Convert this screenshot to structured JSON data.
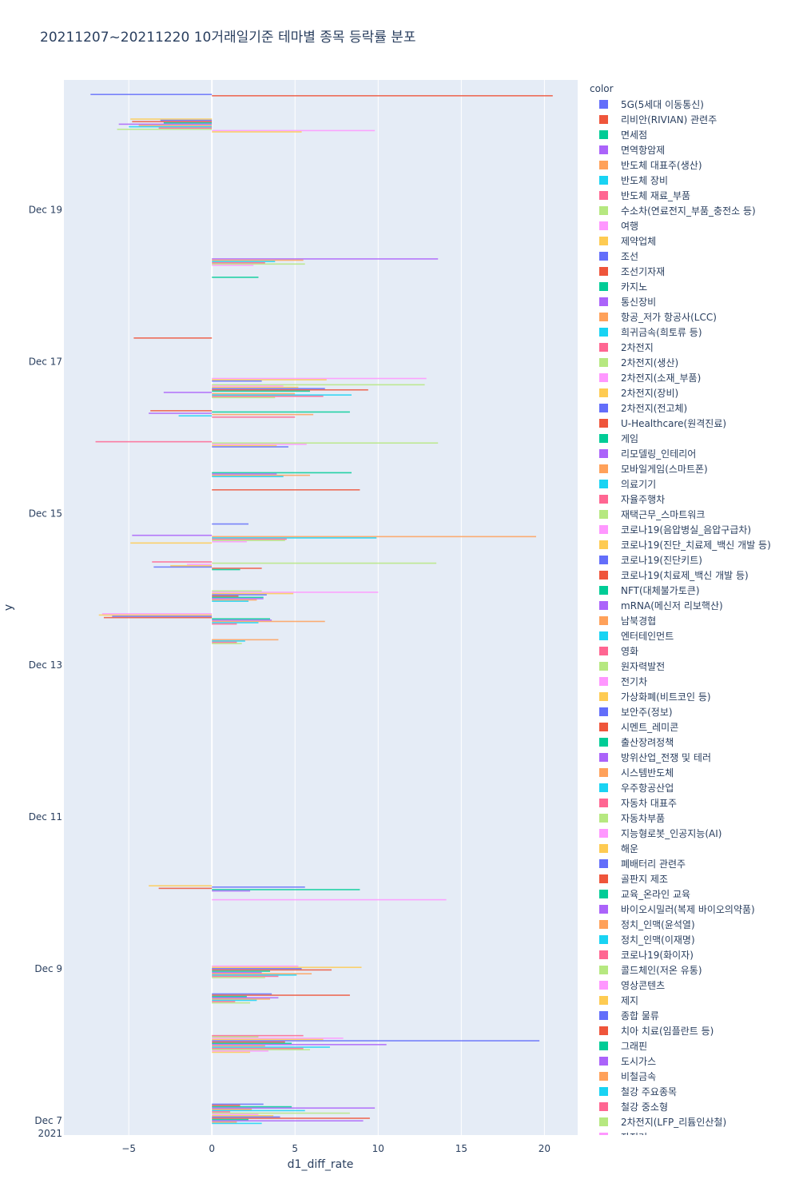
{
  "chart_data": {
    "type": "bar",
    "orientation": "horizontal",
    "title": "20211207~20211220 10거래일기준 테마별 종목 등락률 분포",
    "xlabel": "d1_diff_rate",
    "ylabel": "y",
    "xlim": [
      -8.9,
      22.0
    ],
    "x_ticks": [
      -5,
      0,
      5,
      10,
      15,
      20
    ],
    "x_tick_labels": [
      "−5",
      "0",
      "5",
      "10",
      "15",
      "20"
    ],
    "ylim_days": [
      -0.2,
      13.7
    ],
    "y_ticks": [
      {
        "day": 0,
        "label": "Dec 7",
        "label2": "2021"
      },
      {
        "day": 2,
        "label": "Dec 9"
      },
      {
        "day": 4,
        "label": "Dec 11"
      },
      {
        "day": 6,
        "label": "Dec 13"
      },
      {
        "day": 8,
        "label": "Dec 15"
      },
      {
        "day": 10,
        "label": "Dec 17"
      },
      {
        "day": 12,
        "label": "Dec 19"
      }
    ],
    "legend_title": "color",
    "legend": [
      "5G(5세대 이동통신)",
      "리비안(RIVIAN) 관련주",
      "면세점",
      "면역항암제",
      "반도체 대표주(생산)",
      "반도체 장비",
      "반도체 재료_부품",
      "수소차(연료전지_부품_충전소 등)",
      "여행",
      "제약업체",
      "조선",
      "조선기자재",
      "카지노",
      "통신장비",
      "항공_저가 항공사(LCC)",
      "희귀금속(희토류 등)",
      "2차전지",
      "2차전지(생산)",
      "2차전지(소재_부품)",
      "2차전지(장비)",
      "2차전지(전고체)",
      "U-Healthcare(원격진료)",
      "게임",
      "리모델링_인테리어",
      "모바일게임(스마트폰)",
      "의료기기",
      "자율주행차",
      "재택근무_스마트워크",
      "코로나19(음압병실_음압구급차)",
      "코로나19(진단_치료제_백신 개발 등)",
      "코로나19(진단키트)",
      "코로나19(치료제_백신 개발 등)",
      "NFT(대체불가토큰)",
      "mRNA(메신저 리보핵산)",
      "남북경협",
      "엔터테인먼트",
      "영화",
      "원자력발전",
      "전기차",
      "가상화폐(비트코인 등)",
      "보안주(정보)",
      "시멘트_레미콘",
      "출산장려정책",
      "방위산업_전쟁 및 테러",
      "시스템반도체",
      "우주항공산업",
      "자동차 대표주",
      "자동차부품",
      "지능형로봇_인공지능(AI)",
      "해운",
      "폐배터리 관련주",
      "골판지 제조",
      "교육_온라인 교육",
      "바이오시밀러(복제 바이오의약품)",
      "정치_인맥(윤석열)",
      "정치_인맥(이재명)",
      "코로나19(화이자)",
      "콜드체인(저온 유통)",
      "영상콘텐츠",
      "제지",
      "종합 물류",
      "치아 치료(임플란트 등)",
      "그래핀",
      "도시가스",
      "비철금속",
      "철강 주요종목",
      "철강 중소형",
      "2차전지(LFP_리튬인산철)",
      "자전거"
    ],
    "palette": [
      "#636efa",
      "#EF553B",
      "#00cc96",
      "#ab63fa",
      "#FFA15A",
      "#19d3f3",
      "#FF6692",
      "#B6E880",
      "#FF97FF",
      "#FECB52"
    ],
    "bars": [
      {
        "day": 0.08,
        "values": [
          3.1,
          1.7,
          4.8,
          9.8,
          2.4,
          5.6,
          1.1,
          8.3,
          2.8,
          3.7,
          4.1,
          9.5,
          2.2,
          9.1,
          1.5,
          3.0
        ]
      },
      {
        "day": 1.0,
        "values": [
          5.5,
          2.8,
          7.9,
          6.7,
          19.7,
          4.4,
          4.8,
          10.5,
          3.2,
          7.1,
          5.5,
          5.9,
          3.4,
          2.3
        ]
      },
      {
        "day": 1.6,
        "values": [
          3.6,
          8.3,
          2.1,
          4.0,
          3.5,
          2.7,
          1.4,
          2.3
        ]
      },
      {
        "day": 1.95,
        "values": [
          5.2,
          9.0,
          5.4,
          7.2,
          3.5,
          3.0,
          6.0,
          5.1,
          4.0,
          3.2
        ]
      },
      {
        "day": 2.9,
        "values": [
          14.1
        ]
      },
      {
        "day": 3.05,
        "values": [
          -3.8,
          5.6,
          -3.2,
          8.9,
          2.3
        ]
      },
      {
        "day": 6.3,
        "values": [
          4.0,
          2.0,
          1.5,
          1.8
        ]
      },
      {
        "day": 6.6,
        "values": [
          -6.6,
          -6.8,
          -6.0,
          -6.5,
          3.5,
          3.6,
          6.8,
          2.8,
          1.5
        ]
      },
      {
        "day": 6.9,
        "values": [
          3.0,
          10.0,
          4.9,
          3.3,
          1.6,
          3.1,
          3.1,
          2.7,
          2.2
        ]
      },
      {
        "day": 7.3,
        "values": [
          -3.6,
          13.5,
          -1.5,
          -2.5,
          -3.5,
          3.0,
          1.7
        ]
      },
      {
        "day": 7.65,
        "values": [
          -4.8,
          19.5,
          9.9,
          4.5,
          4.4,
          2.1,
          -4.9
        ]
      },
      {
        "day": 7.85,
        "values": [
          2.2
        ]
      },
      {
        "day": 8.3,
        "values": [
          8.9
        ]
      },
      {
        "day": 8.5,
        "values": [
          8.4,
          3.9,
          5.9,
          4.3
        ]
      },
      {
        "day": 8.9,
        "values": [
          -7.0,
          13.6,
          5.7,
          3.9,
          4.6
        ]
      },
      {
        "day": 9.3,
        "values": [
          -3.7,
          8.3,
          -3.8,
          6.1,
          -2.0,
          5.0
        ]
      },
      {
        "day": 9.6,
        "values": [
          12.8,
          4.3,
          5.2,
          6.8,
          9.4,
          5.9,
          -2.9,
          5.0,
          8.4,
          6.7,
          3.8
        ]
      },
      {
        "day": 9.75,
        "values": [
          12.9,
          6.9,
          3.0
        ]
      },
      {
        "day": 10.3,
        "values": [
          -4.7
        ]
      },
      {
        "day": 11.1,
        "values": [
          2.8
        ]
      },
      {
        "day": 11.3,
        "values": [
          13.6,
          5.5,
          3.8,
          3.2,
          5.6,
          2.5
        ]
      },
      {
        "day": 13.1,
        "values": [
          -4.9,
          -3.1,
          -4.8,
          -2.9,
          -5.6,
          -4.4,
          -5.0,
          -3.2,
          -5.7,
          9.8,
          5.4
        ]
      },
      {
        "day": 13.5,
        "values": [
          -7.3,
          20.5
        ]
      }
    ]
  }
}
